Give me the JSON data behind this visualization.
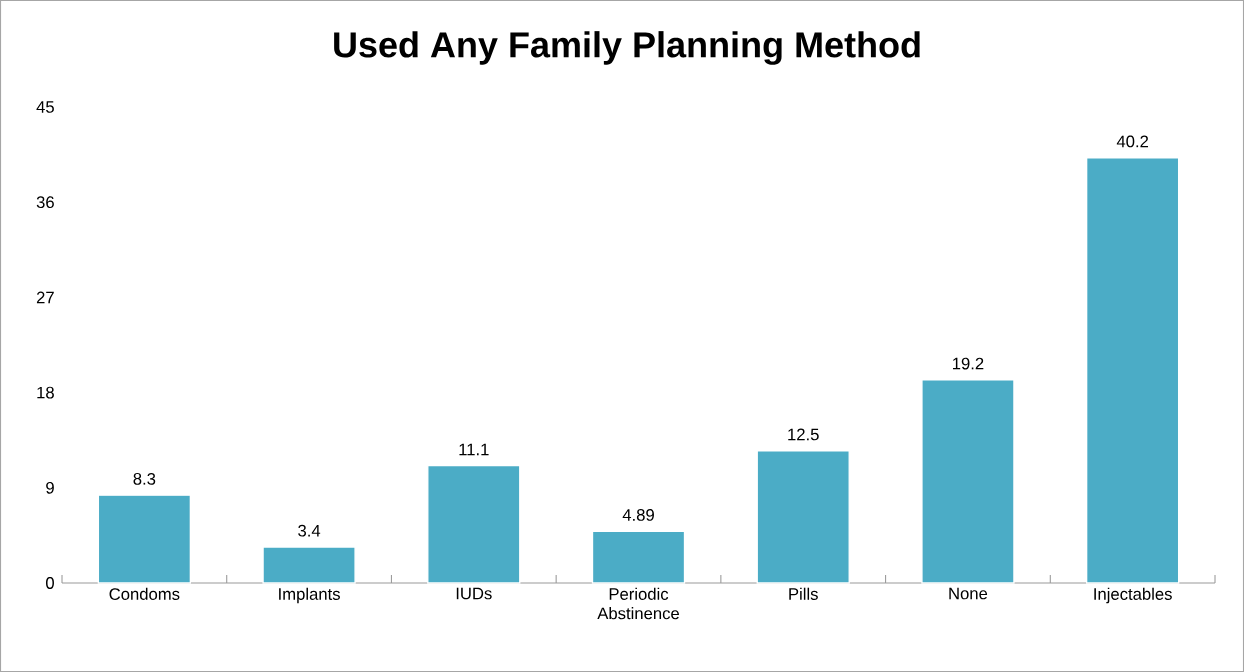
{
  "chart_data": {
    "type": "bar",
    "title": "Used Any Family Planning Method",
    "categories": [
      "Condoms",
      "Implants",
      "IUDs",
      "Periodic Abstinence",
      "Pills",
      "None",
      "Injectables"
    ],
    "values": [
      8.3,
      3.4,
      11.1,
      4.89,
      12.5,
      19.2,
      40.2
    ],
    "color": "#4bacc6",
    "ylim": [
      0,
      45
    ],
    "yticks": [
      0,
      9,
      18,
      27,
      36,
      45
    ],
    "data_labels": true
  }
}
